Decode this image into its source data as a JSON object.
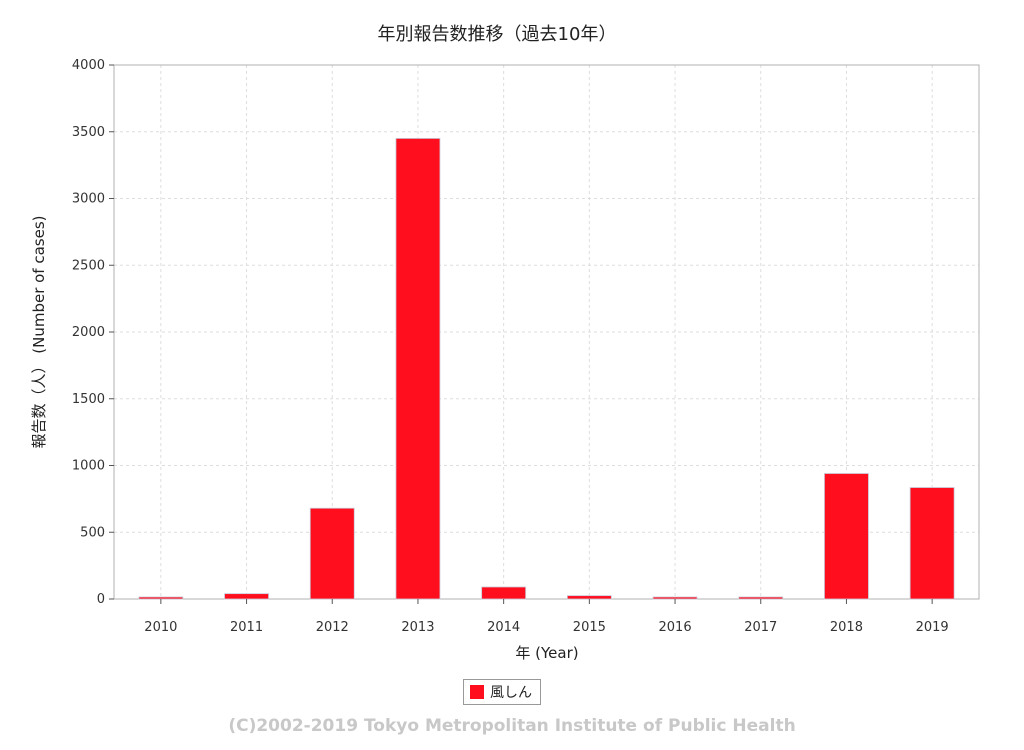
{
  "chart_data": {
    "type": "bar",
    "title": "年別報告数推移（過去10年）",
    "xlabel": "年 (Year)",
    "ylabel": "報告数（人） (Number of cases)",
    "categories": [
      "2010",
      "2011",
      "2012",
      "2013",
      "2014",
      "2015",
      "2016",
      "2017",
      "2018",
      "2019"
    ],
    "series": [
      {
        "name": "風しん",
        "color": "#ff0f1e",
        "values": [
          10,
          40,
          680,
          3450,
          90,
          25,
          10,
          10,
          940,
          835
        ]
      }
    ],
    "ylim": [
      0,
      4000
    ],
    "yticks": [
      "0",
      "500",
      "1000",
      "1500",
      "2000",
      "2500",
      "3000",
      "3500",
      "4000"
    ],
    "grid": true,
    "legend_position": "bottom"
  },
  "footer": {
    "copyright": "(C)2002-2019 Tokyo Metropolitan Institute of Public Health"
  }
}
